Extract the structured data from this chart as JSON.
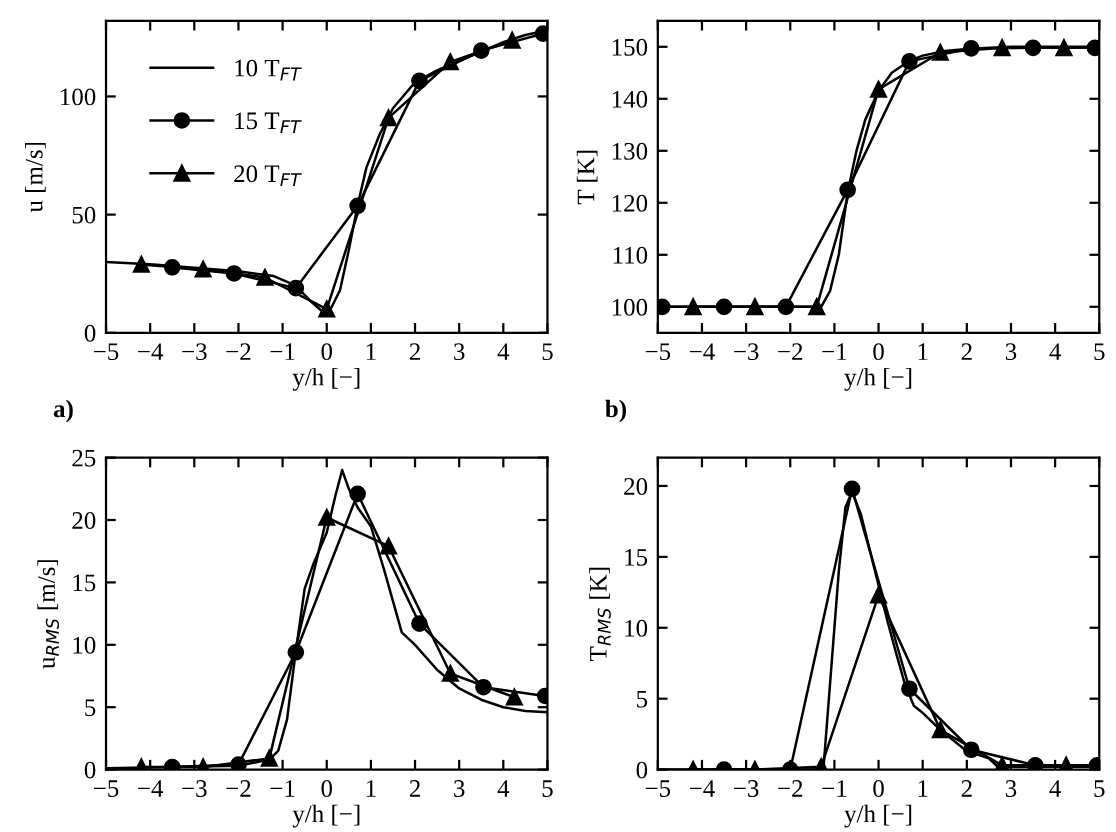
{
  "chart_data": [
    {
      "type": "line",
      "xlabel": "y/h [−]",
      "ylabel": "u [m/s]",
      "xlim": [
        -5,
        5
      ],
      "ylim": [
        0,
        132
      ],
      "xticks": [
        -5,
        -4,
        -3,
        -2,
        -1,
        0,
        1,
        2,
        3,
        4,
        5
      ],
      "yticks": [
        0,
        50,
        100
      ],
      "legend": "top left",
      "annotations": [
        "a)"
      ],
      "series": [
        {
          "name": "10 T$_{FT}$",
          "color": "#000000",
          "marker": "none",
          "x": [
            -5,
            -4,
            -3,
            -2,
            -1.2,
            -0.7,
            -0.4,
            -0.1,
            0.1,
            0.3,
            0.5,
            0.7,
            0.9,
            1.2,
            1.5,
            2,
            2.5,
            3,
            3.5,
            4,
            4.5,
            5
          ],
          "values": [
            30,
            29,
            27.5,
            26,
            24,
            20,
            14,
            9,
            10.5,
            18,
            35,
            54,
            70,
            84,
            95,
            106,
            111,
            115,
            119,
            123,
            126,
            128
          ]
        },
        {
          "name": "15 T$_{FT}$",
          "color": "#000000",
          "marker": "circle",
          "x": [
            -3.5,
            -2.1,
            -0.7,
            0.7,
            2.1,
            3.5,
            4.9
          ],
          "values": [
            27.7,
            25.1,
            18.9,
            53.7,
            106.6,
            119.4,
            126.6
          ]
        },
        {
          "name": "20 T$_{FT}$",
          "color": "#000000",
          "marker": "triangle",
          "x": [
            -4.2,
            -2.8,
            -1.4,
            0,
            1.4,
            2.8,
            4.2
          ],
          "values": [
            28.9,
            26.9,
            23.4,
            10,
            90.9,
            114.6,
            123.7
          ]
        }
      ]
    },
    {
      "type": "line",
      "xlabel": "y/h [−]",
      "ylabel": "T [K]",
      "xlim": [
        -5,
        5
      ],
      "ylim": [
        95,
        155
      ],
      "xticks": [
        -5,
        -4,
        -3,
        -2,
        -1,
        0,
        1,
        2,
        3,
        4,
        5
      ],
      "yticks": [
        100,
        110,
        120,
        130,
        140,
        150
      ],
      "annotations": [
        "b)"
      ],
      "series": [
        {
          "color": "#000000",
          "marker": "none",
          "x": [
            -5,
            -1.3,
            -1.1,
            -0.9,
            -0.7,
            -0.5,
            -0.3,
            0,
            0.3,
            0.7,
            1,
            1.5,
            2,
            3,
            5
          ],
          "values": [
            100,
            100,
            103,
            110,
            122,
            130,
            136,
            141.5,
            145,
            147.3,
            148.3,
            149.2,
            149.6,
            150,
            150
          ]
        },
        {
          "color": "#000000",
          "marker": "circle",
          "x": [
            -4.9,
            -3.5,
            -2.1,
            -0.7,
            0.7,
            2.1,
            3.5,
            4.9
          ],
          "values": [
            100,
            100,
            100,
            122.5,
            147.2,
            149.7,
            149.8,
            149.8
          ]
        },
        {
          "color": "#000000",
          "marker": "triangle",
          "x": [
            -4.2,
            -2.8,
            -1.4,
            0,
            1.4,
            2.8,
            4.2
          ],
          "values": [
            100,
            100,
            100,
            141.8,
            148.9,
            149.8,
            149.8
          ]
        }
      ]
    },
    {
      "type": "line",
      "xlabel": "y/h [−]",
      "ylabel": "u$_{RMS}$ [m/s]",
      "xlim": [
        -5,
        5
      ],
      "ylim": [
        0,
        25
      ],
      "xticks": [
        -5,
        -4,
        -3,
        -2,
        -1,
        0,
        1,
        2,
        3,
        4,
        5
      ],
      "yticks": [
        0,
        5,
        10,
        15,
        20,
        25
      ],
      "series": [
        {
          "color": "#000000",
          "marker": "none",
          "x": [
            -5,
            -2,
            -1.3,
            -1.1,
            -0.9,
            -0.7,
            -0.5,
            -0.3,
            0,
            0.2,
            0.35,
            0.5,
            0.7,
            1,
            1.3,
            1.5,
            1.7,
            2,
            2.5,
            3,
            3.5,
            4,
            4.5,
            5
          ],
          "values": [
            0.1,
            0.3,
            0.8,
            1.5,
            4,
            9.5,
            14.5,
            16.5,
            19,
            22,
            24,
            22.5,
            21,
            19.5,
            16,
            13.5,
            11,
            10,
            8,
            6.5,
            5.6,
            5,
            4.7,
            4.6
          ]
        },
        {
          "color": "#000000",
          "marker": "circle",
          "x": [
            -3.5,
            -2,
            -0.7,
            0.7,
            2.1,
            3.55,
            4.95
          ],
          "values": [
            0.2,
            0.4,
            9.4,
            22.1,
            11.7,
            6.6,
            5.9
          ]
        },
        {
          "color": "#000000",
          "marker": "triangle",
          "x": [
            -4.2,
            -2.8,
            -1.3,
            0,
            1.4,
            2.8,
            4.25
          ],
          "values": [
            0.2,
            0.2,
            0.9,
            20.2,
            17.9,
            7.7,
            5.8
          ]
        }
      ]
    },
    {
      "type": "line",
      "xlabel": "y/h [−]",
      "ylabel": "T$_{RMS}$ [K]",
      "xlim": [
        -5,
        5
      ],
      "ylim": [
        0,
        22
      ],
      "xticks": [
        -5,
        -4,
        -3,
        -2,
        -1,
        0,
        1,
        2,
        3,
        4,
        5
      ],
      "yticks": [
        0,
        5,
        10,
        15,
        20
      ],
      "series": [
        {
          "color": "#000000",
          "marker": "none",
          "x": [
            -5,
            -1.25,
            -1.1,
            -0.9,
            -0.75,
            -0.6,
            -0.4,
            -0.2,
            0,
            0.2,
            0.4,
            0.6,
            0.8,
            1,
            1.4,
            2,
            2.5,
            2.7,
            3,
            5
          ],
          "values": [
            0,
            0,
            6,
            14,
            18.5,
            19.6,
            18,
            15.5,
            13,
            10.5,
            8.2,
            6,
            4.5,
            4,
            2.8,
            1.3,
            0.8,
            0.2,
            0.2,
            0.2
          ]
        },
        {
          "color": "#000000",
          "marker": "circle",
          "x": [
            -3.5,
            -2,
            -0.6,
            0.7,
            2.1,
            3.55,
            4.95
          ],
          "values": [
            0,
            0,
            19.8,
            5.7,
            1.4,
            0.3,
            0.3
          ]
        },
        {
          "color": "#000000",
          "marker": "triangle",
          "x": [
            -4.2,
            -2.8,
            -1.3,
            0,
            1.4,
            2.8,
            4.25
          ],
          "values": [
            0,
            0,
            0.2,
            12.3,
            2.8,
            0.3,
            0.3
          ]
        }
      ]
    }
  ]
}
